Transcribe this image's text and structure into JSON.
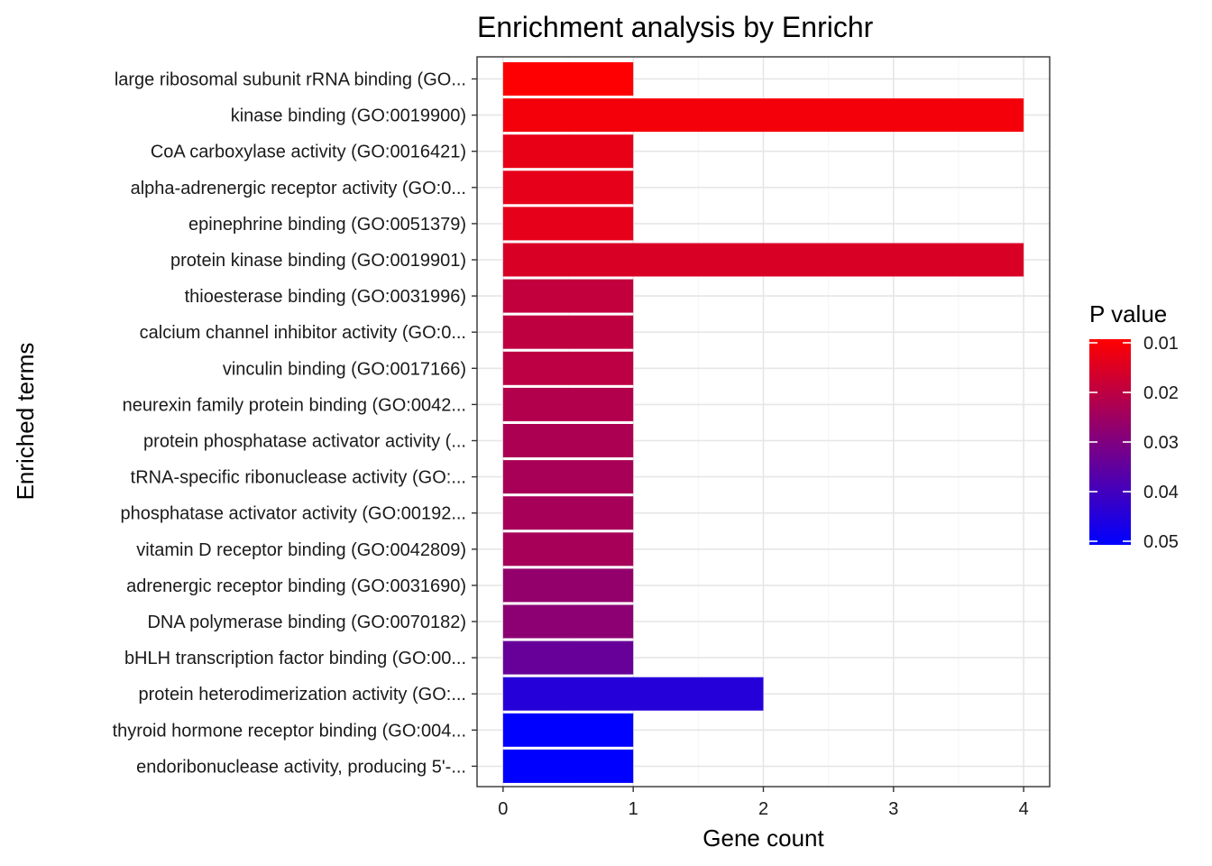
{
  "chart_data": {
    "type": "bar",
    "orientation": "horizontal",
    "title": "Enrichment analysis by Enrichr",
    "xlabel": "Gene count",
    "ylabel": "Enriched terms",
    "xlim": [
      -0.2,
      4.2
    ],
    "xticks": [
      0,
      1,
      2,
      3,
      4
    ],
    "grid": true,
    "categories": [
      "large ribosomal subunit rRNA binding (GO...",
      "kinase binding (GO:0019900)",
      "CoA carboxylase activity (GO:0016421)",
      "alpha-adrenergic receptor activity (GO:0...",
      "epinephrine binding (GO:0051379)",
      "protein kinase binding (GO:0019901)",
      "thioesterase binding (GO:0031996)",
      "calcium channel inhibitor activity (GO:0...",
      "vinculin binding (GO:0017166)",
      "neurexin family protein binding (GO:0042...",
      "protein phosphatase activator activity (...",
      "tRNA-specific ribonuclease activity (GO:...",
      "phosphatase activator activity (GO:00192...",
      "vitamin D receptor binding (GO:0042809)",
      "adrenergic receptor binding (GO:0031690)",
      "DNA polymerase binding (GO:0070182)",
      "bHLH transcription factor binding (GO:00...",
      "protein heterodimerization activity (GO:...",
      "thyroid hormone receptor binding (GO:004...",
      "endoribonuclease activity, producing 5'-..."
    ],
    "values": [
      1,
      4,
      1,
      1,
      1,
      4,
      1,
      1,
      1,
      1,
      1,
      1,
      1,
      1,
      1,
      1,
      1,
      2,
      1,
      1
    ],
    "p_values": [
      0.0102,
      0.0118,
      0.0136,
      0.014,
      0.014,
      0.016,
      0.0196,
      0.02,
      0.0205,
      0.022,
      0.023,
      0.0237,
      0.024,
      0.024,
      0.027,
      0.028,
      0.034,
      0.044,
      0.05,
      0.05
    ],
    "colorbar": {
      "title": "P value",
      "low_color": "#FF0000",
      "high_color": "#0000FF",
      "range": [
        0.01,
        0.05
      ],
      "ticks": [
        "0.01",
        "0.02",
        "0.03",
        "0.04",
        "0.05"
      ],
      "tick_values": [
        0.01,
        0.02,
        0.03,
        0.04,
        0.05
      ]
    },
    "legend_position": "right"
  }
}
